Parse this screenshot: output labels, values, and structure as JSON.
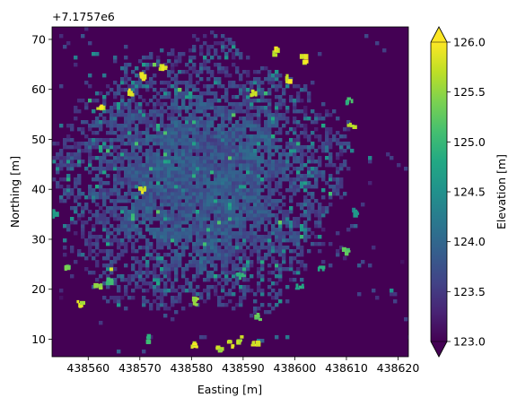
{
  "chart_data": {
    "type": "heatmap",
    "description": "Raster map of a tree canopy elevation model; colored patches are canopy pixels, dark background is ground-level elevation",
    "xlabel": "Easting [m]",
    "ylabel": "Northing [m]",
    "y_offset_label": "+7.1757e6",
    "xlim": [
      438553,
      438622
    ],
    "ylim": [
      6.5,
      72.5
    ],
    "xticks": [
      438560,
      438570,
      438580,
      438590,
      438600,
      438610,
      438620
    ],
    "xtick_labels": [
      "438560",
      "438570",
      "438580",
      "438590",
      "438600",
      "438610",
      "438620"
    ],
    "yticks": [
      10,
      20,
      30,
      40,
      50,
      60,
      70
    ],
    "ytick_labels": [
      "10",
      "20",
      "30",
      "40",
      "50",
      "60",
      "70"
    ],
    "colorbar": {
      "label": "Elevation [m]",
      "colormap": "viridis",
      "vmin": 123.0,
      "vmax": 126.0,
      "extend": "both",
      "ticks": [
        123.0,
        123.5,
        124.0,
        124.5,
        125.0,
        125.5,
        126.0
      ],
      "tick_labels": [
        "123.0",
        "123.5",
        "124.0",
        "124.5",
        "125.0",
        "125.5",
        "126.0"
      ]
    },
    "background_value": 123.0,
    "crown_center": [
      438581,
      41
    ],
    "highlights": [
      {
        "x": 438553.5,
        "y": 35.0,
        "value": 124.8
      },
      {
        "x": 438562.0,
        "y": 20.5,
        "value": 125.6
      },
      {
        "x": 438564.0,
        "y": 21.5,
        "value": 125.3
      },
      {
        "x": 438558.5,
        "y": 17.0,
        "value": 125.9
      },
      {
        "x": 438562.5,
        "y": 56.5,
        "value": 126.0
      },
      {
        "x": 438568.0,
        "y": 59.5,
        "value": 126.0
      },
      {
        "x": 438570.5,
        "y": 62.5,
        "value": 126.0
      },
      {
        "x": 438570.5,
        "y": 40.0,
        "value": 126.0
      },
      {
        "x": 438574.5,
        "y": 64.5,
        "value": 126.0
      },
      {
        "x": 438592.0,
        "y": 59.0,
        "value": 125.9
      },
      {
        "x": 438596.5,
        "y": 67.5,
        "value": 126.0
      },
      {
        "x": 438599.0,
        "y": 62.0,
        "value": 126.0
      },
      {
        "x": 438602.0,
        "y": 66.0,
        "value": 126.0
      },
      {
        "x": 438611.0,
        "y": 52.5,
        "value": 125.8
      },
      {
        "x": 438610.5,
        "y": 57.5,
        "value": 125.2
      },
      {
        "x": 438611.5,
        "y": 35.5,
        "value": 124.7
      },
      {
        "x": 438610.0,
        "y": 27.5,
        "value": 125.3
      },
      {
        "x": 438605.0,
        "y": 24.5,
        "value": 125.0
      },
      {
        "x": 438601.0,
        "y": 20.5,
        "value": 125.0
      },
      {
        "x": 438589.5,
        "y": 22.5,
        "value": 125.1
      },
      {
        "x": 438581.0,
        "y": 17.5,
        "value": 125.6
      },
      {
        "x": 438580.5,
        "y": 9.0,
        "value": 126.0
      },
      {
        "x": 438585.5,
        "y": 8.0,
        "value": 125.8
      },
      {
        "x": 438587.5,
        "y": 9.0,
        "value": 126.0
      },
      {
        "x": 438589.5,
        "y": 10.0,
        "value": 125.9
      },
      {
        "x": 438593.0,
        "y": 14.5,
        "value": 125.4
      },
      {
        "x": 438572.0,
        "y": 10.0,
        "value": 125.2
      },
      {
        "x": 438556.0,
        "y": 24.0,
        "value": 125.4
      },
      {
        "x": 438592.5,
        "y": 9.0,
        "value": 126.0
      }
    ]
  }
}
